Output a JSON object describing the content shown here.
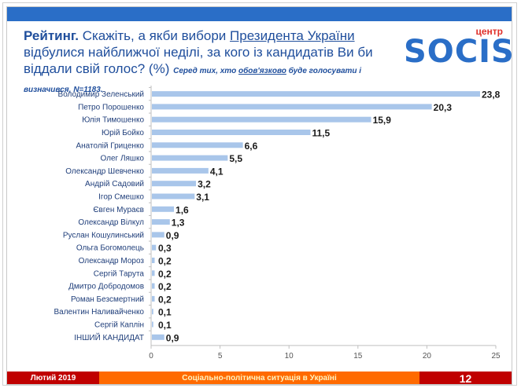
{
  "header": {
    "title_bold": "Рейтинг.",
    "title_part1": " Скажіть, а якби вибори ",
    "title_underlined": "Президента України",
    "title_part2": " відбулися найближчої неділі, за кого із кандидатів Ви би віддали свій голос? (%) ",
    "note_part1": "Серед тих, хто ",
    "note_underlined": "обов'язково",
    "note_part2": " буде голосувати і визначився, N=1183."
  },
  "logo": {
    "small": "центр",
    "big": "SOCIS"
  },
  "colors": {
    "bar": "#a9c6ea",
    "topbar": "#2a6ec7",
    "footer_red": "#c00000",
    "footer_orange": "#ff6a00"
  },
  "chart_data": {
    "type": "bar",
    "orientation": "horizontal",
    "categories": [
      "Володимир Зеленський",
      "Петро Порошенко",
      "Юлія Тимошенко",
      "Юрій Бойко",
      "Анатолій Гриценко",
      "Олег Ляшко",
      "Олександр Шевченко",
      "Андрій Садовий",
      "Ігор Смешко",
      "Євген Мураєв",
      "Олександр Вілкул",
      "Руслан Кошулинський",
      "Ольга Богомолець",
      "Олександр Мороз",
      "Сергій Тарута",
      "Дмитро Добродомов",
      "Роман Безсмертний",
      "Валентин Наливайченко",
      "Сергій Каплін",
      "ІНШИЙ КАНДИДАТ"
    ],
    "values": [
      23.8,
      20.3,
      15.9,
      11.5,
      6.6,
      5.5,
      4.1,
      3.2,
      3.1,
      1.6,
      1.3,
      0.9,
      0.3,
      0.2,
      0.2,
      0.2,
      0.2,
      0.1,
      0.1,
      0.9
    ],
    "value_labels": [
      "23,8",
      "20,3",
      "15,9",
      "11,5",
      "6,6",
      "5,5",
      "4,1",
      "3,2",
      "3,1",
      "1,6",
      "1,3",
      "0,9",
      "0,3",
      "0,2",
      "0,2",
      "0,2",
      "0,2",
      "0,1",
      "0,1",
      "0,9"
    ],
    "xlim": [
      0,
      25
    ],
    "xticks": [
      "0",
      "5",
      "10",
      "15",
      "20",
      "25"
    ],
    "xtick_values": [
      0,
      5,
      10,
      15,
      20,
      25
    ],
    "grid": false,
    "legend": "none"
  },
  "footer": {
    "date": "Лютий 2019",
    "topic": "Соціально-політична ситуація в Україні",
    "page": "12"
  }
}
